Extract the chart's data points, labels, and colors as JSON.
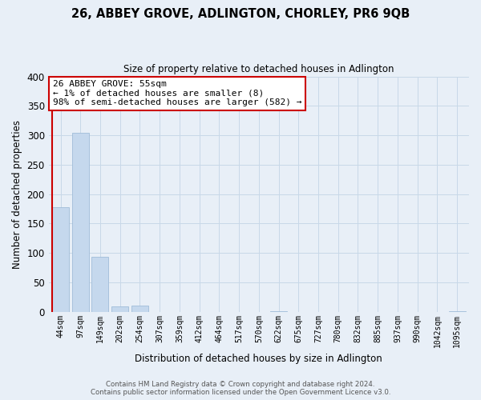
{
  "title": "26, ABBEY GROVE, ADLINGTON, CHORLEY, PR6 9QB",
  "subtitle": "Size of property relative to detached houses in Adlington",
  "xlabel": "Distribution of detached houses by size in Adlington",
  "ylabel": "Number of detached properties",
  "bar_labels": [
    "44sqm",
    "97sqm",
    "149sqm",
    "202sqm",
    "254sqm",
    "307sqm",
    "359sqm",
    "412sqm",
    "464sqm",
    "517sqm",
    "570sqm",
    "622sqm",
    "675sqm",
    "727sqm",
    "780sqm",
    "832sqm",
    "885sqm",
    "937sqm",
    "990sqm",
    "1042sqm",
    "1095sqm"
  ],
  "bar_values": [
    178,
    304,
    93,
    9,
    11,
    0,
    0,
    0,
    0,
    0,
    0,
    1,
    0,
    0,
    0,
    0,
    0,
    0,
    0,
    0,
    1
  ],
  "bar_color": "#c5d8ed",
  "bar_edge_color": "#a0bcd8",
  "highlight_bar_index": 0,
  "highlight_edge_color": "#cc0000",
  "ylim": [
    0,
    400
  ],
  "yticks": [
    0,
    50,
    100,
    150,
    200,
    250,
    300,
    350,
    400
  ],
  "annotation_text": "26 ABBEY GROVE: 55sqm\n← 1% of detached houses are smaller (8)\n98% of semi-detached houses are larger (582) →",
  "annotation_box_color": "#ffffff",
  "annotation_box_edge": "#cc0000",
  "footer_line1": "Contains HM Land Registry data © Crown copyright and database right 2024.",
  "footer_line2": "Contains public sector information licensed under the Open Government Licence v3.0.",
  "grid_color": "#c8d8e8",
  "background_color": "#e8eff7"
}
